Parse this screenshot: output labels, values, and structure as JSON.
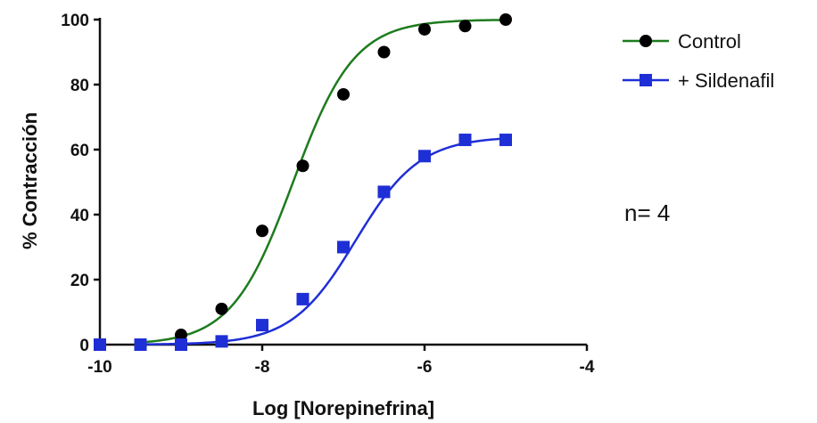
{
  "chart_data": {
    "type": "scatter",
    "title": "",
    "xlabel": "Log [Norepinefrina]",
    "ylabel": "% Contracción",
    "xlim": [
      -10,
      -4
    ],
    "ylim": [
      0,
      100
    ],
    "x_ticks": [
      -10,
      -8,
      -6,
      -4
    ],
    "x_tick_labels": [
      "-10",
      "-8",
      "-6",
      "-4"
    ],
    "y_ticks": [
      0,
      20,
      40,
      60,
      80,
      100
    ],
    "y_tick_labels": [
      "0",
      "20",
      "40",
      "60",
      "80",
      "100"
    ],
    "grid": false,
    "legend_position": "top-right",
    "series": [
      {
        "name": "Control",
        "color": "#1e7b1e",
        "marker": "circle",
        "marker_color": "#000000",
        "x": [
          -10,
          -9.5,
          -9,
          -8.5,
          -8,
          -7.5,
          -7,
          -6.5,
          -6,
          -5.5,
          -5
        ],
        "y": [
          0,
          0,
          3,
          11,
          35,
          55,
          77,
          90,
          97,
          98,
          100
        ],
        "fit": {
          "bottom": 0,
          "top": 100,
          "logEC50": -7.62,
          "hill": 1.15
        }
      },
      {
        "name": "+ Sildenafil",
        "color": "#1f2fd6",
        "marker": "square",
        "marker_color": "#1f2fd6",
        "x": [
          -10,
          -9.5,
          -9,
          -8.5,
          -8,
          -7.5,
          -7,
          -6.5,
          -6,
          -5.5,
          -5
        ],
        "y": [
          0,
          0,
          0,
          1,
          6,
          14,
          30,
          47,
          58,
          63,
          63
        ],
        "fit": {
          "bottom": 0,
          "top": 64,
          "logEC50": -6.85,
          "hill": 1.1
        }
      }
    ],
    "annotation": "n= 4"
  }
}
